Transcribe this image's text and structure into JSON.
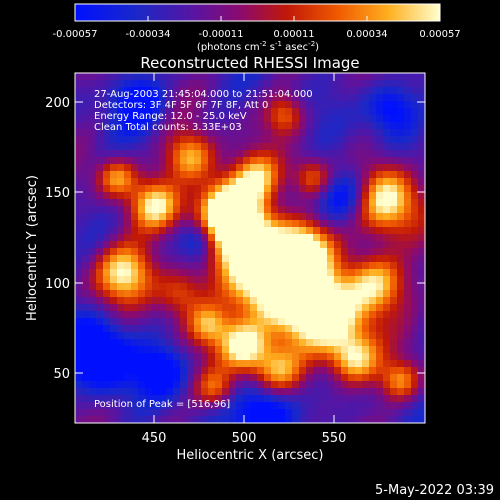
{
  "colorbar": {
    "tick_labels": [
      "-0.00057",
      "-0.00034",
      "-0.00011",
      "0.00011",
      "0.00034",
      "0.00057"
    ],
    "units_prefix": "(photons cm",
    "units_exp1": "-2",
    "units_mid": " s",
    "units_exp2": "-1",
    "units_mid2": " asec",
    "units_exp3": "-2",
    "units_suffix": ")"
  },
  "plot": {
    "title": "Reconstructed RHESSI Image",
    "xlabel": "Heliocentric X (arcsec)",
    "ylabel": "Heliocentric Y (arcsec)",
    "x_ticks": [
      "450",
      "500",
      "550"
    ],
    "y_ticks": [
      "200",
      "150",
      "100",
      "50"
    ],
    "info_lines": [
      "27-Aug-2003 21:45:04.000 to 21:51:04.000",
      "Detectors: 3F 4F 5F 6F 7F 8F, Att 0",
      "Energy Range: 12.0 - 25.0 keV",
      "Clean    Total counts: 3.33E+03"
    ],
    "peak_text": "Position of Peak = [516,96]",
    "xlim": [
      405,
      598
    ],
    "ylim": [
      22,
      215
    ]
  },
  "footer": {
    "timestamp": "5-May-2022 03:39"
  }
}
